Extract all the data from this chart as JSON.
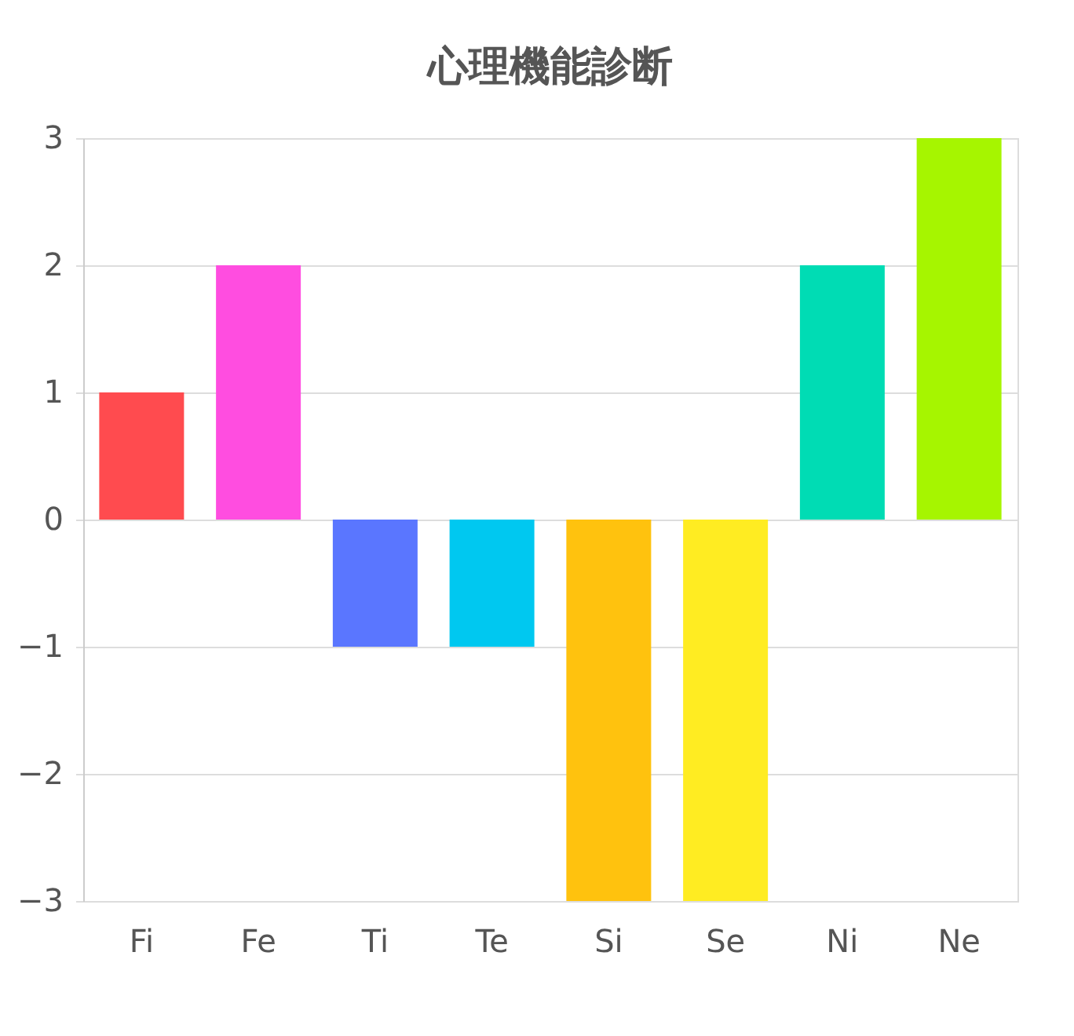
{
  "chart_data": {
    "type": "bar",
    "title": "心理機能診断",
    "categories": [
      "Fi",
      "Fe",
      "Ti",
      "Te",
      "Si",
      "Se",
      "Ni",
      "Ne"
    ],
    "values": [
      1,
      2,
      -1,
      -1,
      -3,
      -3,
      2,
      3
    ],
    "colors": [
      "#ff4b4f",
      "#ff4de0",
      "#5a76ff",
      "#00c8f0",
      "#ffc20e",
      "#ffec22",
      "#00dcb4",
      "#a6f500"
    ],
    "ylim": [
      -3,
      3
    ],
    "yticks": [
      -3,
      -2,
      -1,
      0,
      1,
      2,
      3
    ],
    "grid": "y",
    "legend": false
  }
}
